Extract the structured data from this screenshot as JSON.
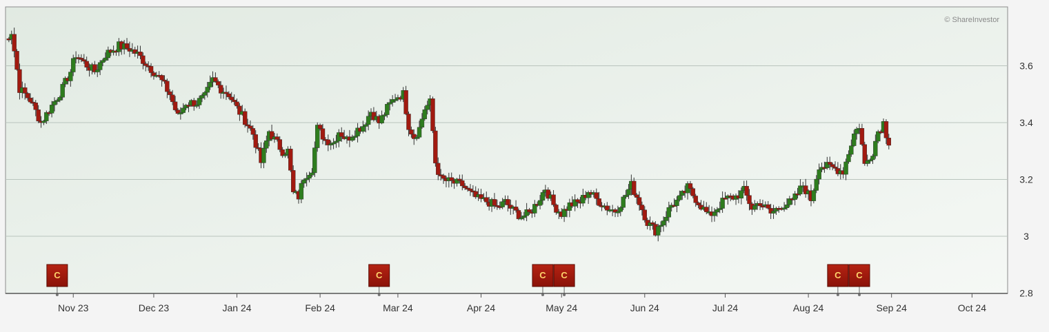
{
  "credit": "© ShareInvestor",
  "colors": {
    "up": "#2e7d1e",
    "down": "#a11a10",
    "grid": "#b9c4bd",
    "marker": "#a3180c"
  },
  "chart_data": {
    "type": "candlestick",
    "ylim": [
      2.8,
      3.72
    ],
    "y_ticks": [
      {
        "value": 3.6,
        "label": "3.6"
      },
      {
        "value": 3.4,
        "label": "3.4"
      },
      {
        "value": 3.2,
        "label": "3.2"
      },
      {
        "value": 3.0,
        "label": "3"
      },
      {
        "value": 2.8,
        "label": "2.8"
      }
    ],
    "x_ticks": [
      {
        "day": 7,
        "label": "Nov 23"
      },
      {
        "day": 37,
        "label": "Dec 23"
      },
      {
        "day": 68,
        "label": "Jan 24"
      },
      {
        "day": 99,
        "label": "Feb 24"
      },
      {
        "day": 128,
        "label": "Mar 24"
      },
      {
        "day": 159,
        "label": "Apr 24"
      },
      {
        "day": 189,
        "label": "May 24"
      },
      {
        "day": 220,
        "label": "Jun 24"
      },
      {
        "day": 250,
        "label": "Jul 24"
      },
      {
        "day": 281,
        "label": "Aug 24"
      },
      {
        "day": 312,
        "label": "Sep 24"
      },
      {
        "day": 342,
        "label": "Oct 24"
      }
    ],
    "event_markers": [
      {
        "day": 1,
        "label": "C"
      },
      {
        "day": 121,
        "label": "C"
      },
      {
        "day": 182,
        "label": "C"
      },
      {
        "day": 190,
        "label": "C"
      },
      {
        "day": 292,
        "label": "C"
      },
      {
        "day": 300,
        "label": "C"
      }
    ],
    "price_path": [
      [
        -19,
        3.68
      ],
      [
        -16,
        3.72
      ],
      [
        -13,
        3.52
      ],
      [
        -9,
        3.48
      ],
      [
        -5,
        3.4
      ],
      [
        -1,
        3.46
      ],
      [
        3,
        3.52
      ],
      [
        6,
        3.58
      ],
      [
        8,
        3.64
      ],
      [
        11,
        3.61
      ],
      [
        15,
        3.58
      ],
      [
        19,
        3.64
      ],
      [
        24,
        3.67
      ],
      [
        28,
        3.66
      ],
      [
        31,
        3.64
      ],
      [
        35,
        3.6
      ],
      [
        39,
        3.56
      ],
      [
        43,
        3.5
      ],
      [
        46,
        3.42
      ],
      [
        49,
        3.47
      ],
      [
        53,
        3.47
      ],
      [
        56,
        3.49
      ],
      [
        59,
        3.55
      ],
      [
        62,
        3.52
      ],
      [
        65,
        3.5
      ],
      [
        68,
        3.45
      ],
      [
        71,
        3.41
      ],
      [
        74,
        3.36
      ],
      [
        77,
        3.26
      ],
      [
        80,
        3.37
      ],
      [
        82,
        3.34
      ],
      [
        85,
        3.3
      ],
      [
        87,
        3.3
      ],
      [
        89,
        3.15
      ],
      [
        91,
        3.14
      ],
      [
        93,
        3.21
      ],
      [
        96,
        3.24
      ],
      [
        98,
        3.38
      ],
      [
        101,
        3.34
      ],
      [
        104,
        3.33
      ],
      [
        106,
        3.37
      ],
      [
        109,
        3.34
      ],
      [
        112,
        3.37
      ],
      [
        115,
        3.39
      ],
      [
        118,
        3.44
      ],
      [
        121,
        3.4
      ],
      [
        124,
        3.45
      ],
      [
        127,
        3.49
      ],
      [
        130,
        3.5
      ],
      [
        132,
        3.39
      ],
      [
        134,
        3.35
      ],
      [
        136,
        3.38
      ],
      [
        138,
        3.45
      ],
      [
        140,
        3.47
      ],
      [
        141,
        3.37
      ],
      [
        142,
        3.26
      ],
      [
        144,
        3.2
      ],
      [
        148,
        3.19
      ],
      [
        152,
        3.18
      ],
      [
        155,
        3.15
      ],
      [
        158,
        3.13
      ],
      [
        162,
        3.12
      ],
      [
        165,
        3.1
      ],
      [
        168,
        3.12
      ],
      [
        171,
        3.09
      ],
      [
        174,
        3.07
      ],
      [
        177,
        3.08
      ],
      [
        180,
        3.12
      ],
      [
        183,
        3.17
      ],
      [
        186,
        3.11
      ],
      [
        189,
        3.08
      ],
      [
        192,
        3.11
      ],
      [
        196,
        3.12
      ],
      [
        199,
        3.16
      ],
      [
        202,
        3.13
      ],
      [
        206,
        3.1
      ],
      [
        209,
        3.09
      ],
      [
        212,
        3.13
      ],
      [
        215,
        3.18
      ],
      [
        218,
        3.12
      ],
      [
        221,
        3.05
      ],
      [
        224,
        3.02
      ],
      [
        227,
        3.06
      ],
      [
        230,
        3.11
      ],
      [
        233,
        3.13
      ],
      [
        236,
        3.17
      ],
      [
        240,
        3.12
      ],
      [
        244,
        3.07
      ],
      [
        247,
        3.1
      ],
      [
        250,
        3.13
      ],
      [
        254,
        3.14
      ],
      [
        257,
        3.16
      ],
      [
        260,
        3.1
      ],
      [
        263,
        3.12
      ],
      [
        267,
        3.08
      ],
      [
        271,
        3.11
      ],
      [
        275,
        3.12
      ],
      [
        279,
        3.18
      ],
      [
        282,
        3.13
      ],
      [
        285,
        3.25
      ],
      [
        290,
        3.24
      ],
      [
        294,
        3.23
      ],
      [
        298,
        3.36
      ],
      [
        300,
        3.39
      ],
      [
        302,
        3.25
      ],
      [
        305,
        3.3
      ],
      [
        307,
        3.37
      ],
      [
        309,
        3.4
      ],
      [
        311,
        3.32
      ]
    ]
  }
}
